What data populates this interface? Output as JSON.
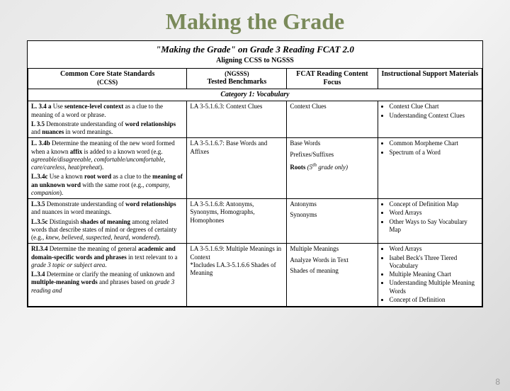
{
  "slide": {
    "title": "Making the Grade",
    "doc_title": "\"Making the Grade\" on Grade 3 Reading FCAT 2.0",
    "doc_subtitle": "Aligning CCSS to NGSSS",
    "page_number": "8",
    "title_color": "#7a8a5a",
    "background_gradient": [
      "#e8e8e8",
      "#f5f5f5",
      "#d8d8d8"
    ]
  },
  "columns": [
    {
      "header": "Common Core State Standards",
      "sub": "(CCSS)",
      "width": "35%"
    },
    {
      "header": "(NGSSS)\nTested Benchmarks",
      "sub": "",
      "width": "22%"
    },
    {
      "header": "FCAT Reading Content Focus",
      "sub": "",
      "width": "20%"
    },
    {
      "header": "Instructional Support Materials",
      "sub": "",
      "width": "23%"
    }
  ],
  "category": "Category 1: Vocabulary",
  "rows": [
    {
      "ccss_html": "<div class='para'><span class='b'>L. 3.4 a</span> Use <span class='b'>sentence-level context</span> as a clue to the meaning of a word or phrase.</div><div><span class='b'>L 3.5</span> Demonstrate understanding of <span class='b'>word relationships</span> and <span class='b'>nuances</span> in word meanings.</div>",
      "ngsss": "LA 3-5.1.6.3: Context Clues",
      "focus": "Context Clues",
      "materials": [
        "Context Clue Chart",
        "Understanding Context Clues"
      ]
    },
    {
      "ccss_html": "<div class='para'><span class='b'>L. 3.4b</span> Determine the meaning of the new word formed when a known <span class='b'>affix</span> is added to a known word (e.g. <span class='i'>agreeable/disagreeable, comfortable/uncomfortable, care/careless, heat/preheat</span>).</div><div><span class='b'>L.3.4c</span> Use a known <span class='b'>root word</span> as a clue to the <span class='b'>meaning of an unknown word</span> with the same root (e.g., <span class='i'>company, companion</span>).</div>",
      "ngsss": "LA 3-5.1.6.7: Base Words and Affixes",
      "focus_html": "<div>Base Words</div><div class='spaced'>Prefixes/Suffixes</div><div class='spaced'><span class='b'>Roots</span> <span class='i'>(5<sup>th</sup> grade only)</span></div>",
      "materials": [
        "Common Morpheme Chart",
        "Spectrum of a Word"
      ]
    },
    {
      "ccss_html": "<div class='para'><span class='b'>L.3.5</span> Demonstrate understanding of <span class='b'>word relationships</span> and nuances in word meanings.</div><div><span class='b'>L.3.5c</span> Distinguish <span class='b'>shades of meaning</span> among related words that describe states of mind or degrees of certainty (e.g., <span class='i'>knew, believed, suspected, heard, wondered</span>).</div>",
      "ngsss": "LA 3-5.1.6.8: Antonyms, Synonyms, Homographs, Homophones",
      "focus_html": "<div>Antonyms</div><div class='spaced'>Synonyms</div>",
      "materials": [
        "Concept of Definition Map",
        "Word Arrays",
        "Other Ways to Say Vocabulary Map"
      ]
    },
    {
      "ccss_html": "<div class='para'><span class='b'>RI.3.4</span> Determine the meaning of general <span class='b'>academic and domain-specific words and phrases</span> in text relevant to a <span class='i'>grade 3 topic or subject area</span>.</div><div><span class='b'>L.3.4</span> Determine or clarify the meaning of unknown and <span class='b'>multiple-meaning words</span> and phrases based on <span class='i'>grade 3 reading and</span></div>",
      "ngsss": "LA 3-5.1.6.9: Multiple Meanings in Context<br>*Includes LA.3-5.1.6.6 Shades of Meaning",
      "focus_html": "<div>Multiple Meanings</div><div class='spaced'>Analyze Words in Text</div><div class='spaced'>Shades of meaning</div>",
      "materials": [
        "Word Arrays",
        "Isabel Beck's Three Tiered Vocabulary",
        "Multiple Meaning Chart",
        "Understanding Multiple Meaning Words",
        "Concept of Definition"
      ]
    }
  ]
}
